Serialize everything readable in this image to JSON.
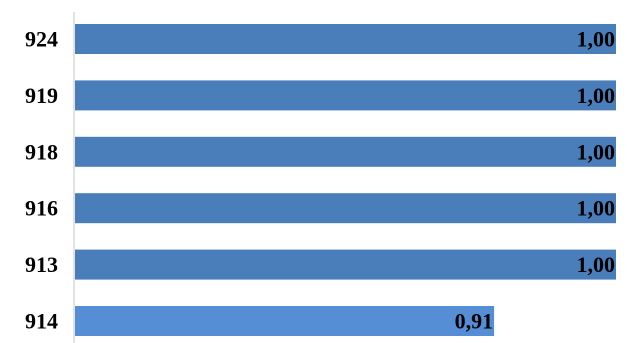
{
  "chart_data": {
    "type": "bar",
    "orientation": "horizontal",
    "title": "",
    "xlabel": "",
    "ylabel": "",
    "categories": [
      "924",
      "919",
      "918",
      "916",
      "913",
      "914"
    ],
    "values": [
      1.0,
      1.0,
      1.0,
      1.0,
      1.0,
      0.91
    ],
    "value_labels": [
      "1,00",
      "1,00",
      "1,00",
      "1,00",
      "1,00",
      "0,91"
    ],
    "xlim": [
      0.6,
      1.0
    ],
    "grid": false,
    "legend": "none",
    "colors": {
      "bar": "#4a7ebb",
      "bar_highlight": "#558ed5",
      "axis": "#d9d9d9",
      "text": "#000000"
    }
  }
}
